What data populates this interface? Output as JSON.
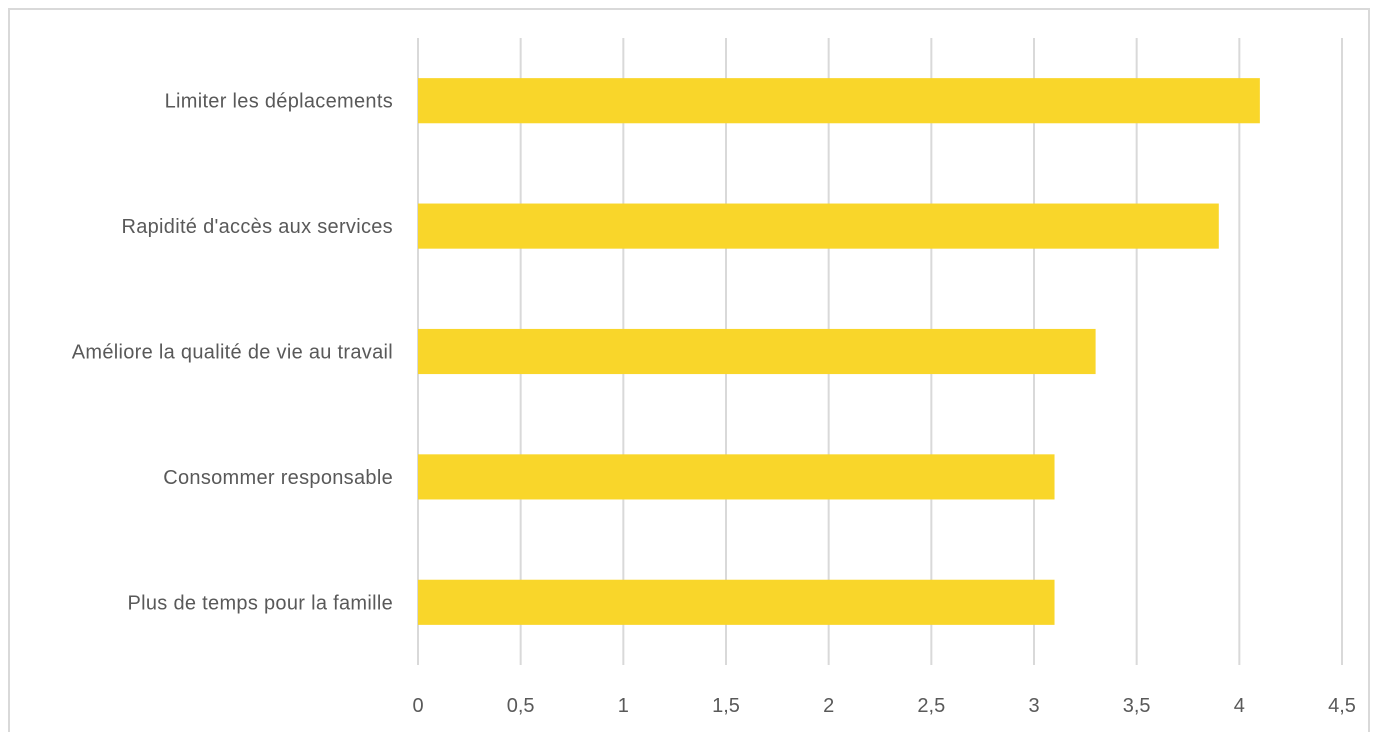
{
  "chart_data": {
    "type": "bar",
    "orientation": "horizontal",
    "title": "",
    "xlabel": "",
    "ylabel": "",
    "categories": [
      "Limiter les déplacements",
      "Rapidité d'accès aux services",
      "Améliore la qualité de vie au travail",
      "Consommer responsable",
      "Plus de temps pour la famille"
    ],
    "values": [
      4.1,
      3.9,
      3.3,
      3.1,
      3.1
    ],
    "xlim": [
      0,
      4.5
    ],
    "ticks": [
      "0",
      "0,5",
      "1",
      "1,5",
      "2",
      "2,5",
      "3",
      "3,5",
      "4",
      "4,5"
    ],
    "tick_values": [
      0,
      0.5,
      1,
      1.5,
      2,
      2.5,
      3,
      3.5,
      4,
      4.5
    ],
    "grid": true,
    "legend": "none",
    "colors": {
      "bar": "#F9D62A",
      "grid": "#D9D9D9",
      "text": "#595959",
      "border": "#D9D9D9"
    }
  }
}
